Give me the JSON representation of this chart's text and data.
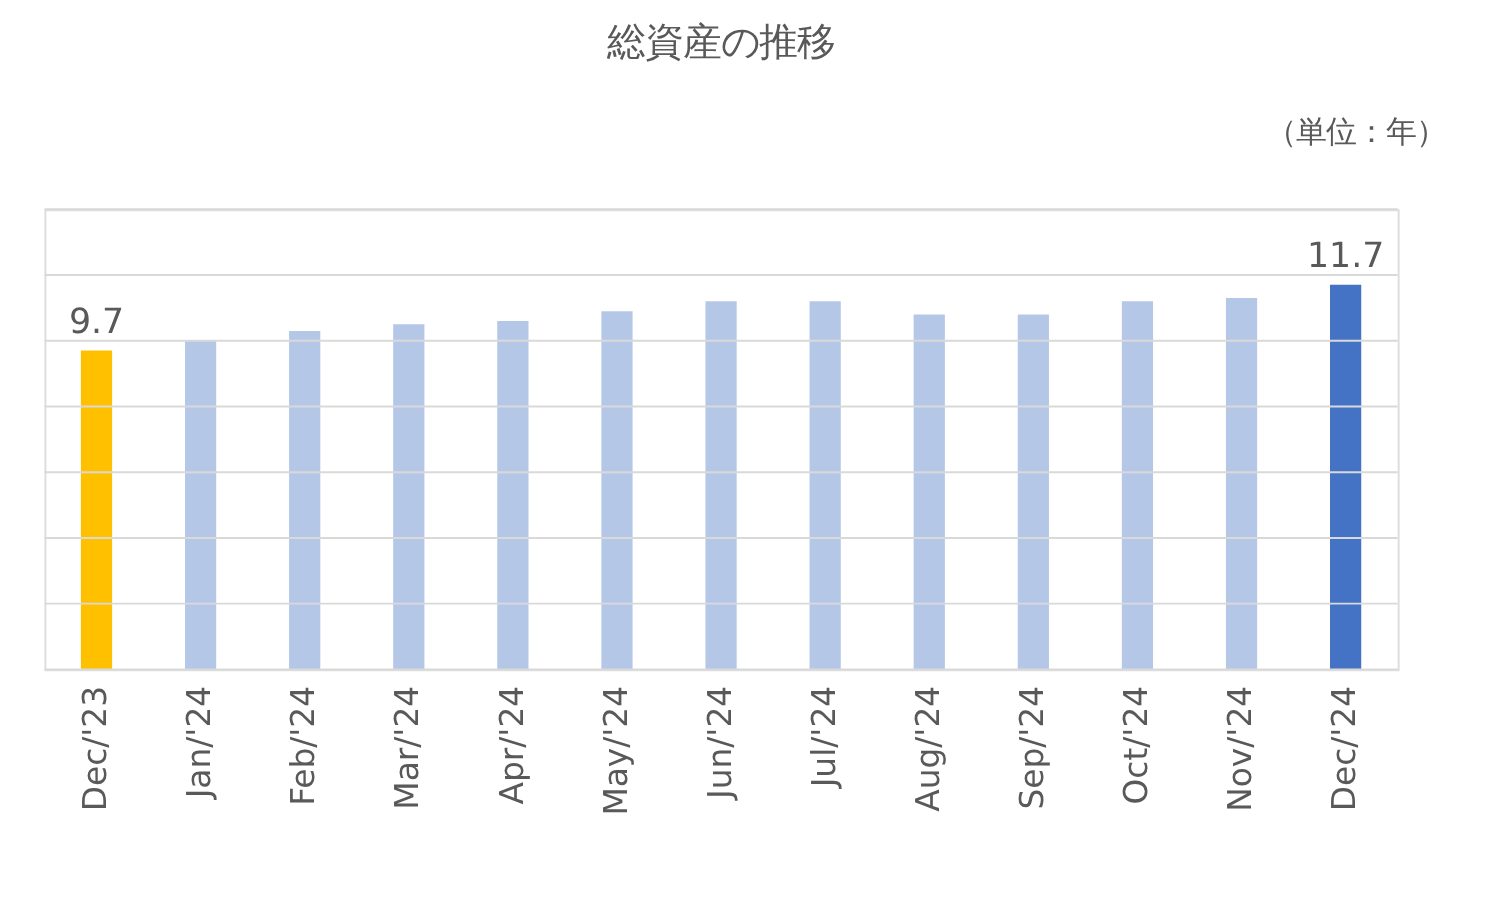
{
  "chart_data": {
    "type": "bar",
    "title": "総資産の推移",
    "annotations": [
      "（単位：年）"
    ],
    "categories": [
      "Dec/'23",
      "Jan/'24",
      "Feb/'24",
      "Mar/'24",
      "Apr/'24",
      "May/'24",
      "Jun/'24",
      "Jul/'24",
      "Aug/'24",
      "Sep/'24",
      "Oct/'24",
      "Nov/'24",
      "Dec/'24"
    ],
    "values": [
      9.7,
      10.0,
      10.3,
      10.5,
      10.6,
      10.9,
      11.2,
      11.2,
      10.8,
      10.8,
      11.2,
      11.3,
      11.7
    ],
    "colors": [
      "#ffc000",
      "#b4c7e7",
      "#b4c7e7",
      "#b4c7e7",
      "#b4c7e7",
      "#b4c7e7",
      "#b4c7e7",
      "#b4c7e7",
      "#b4c7e7",
      "#b4c7e7",
      "#b4c7e7",
      "#b4c7e7",
      "#4472c4"
    ],
    "value_labels": [
      "9.7",
      null,
      null,
      null,
      null,
      null,
      null,
      null,
      null,
      null,
      null,
      null,
      "11.7"
    ],
    "ylim": [
      0,
      14
    ],
    "yticks": [
      {
        "value": 0,
        "label": null
      },
      {
        "value": 2,
        "label": null
      },
      {
        "value": 4,
        "label": null
      },
      {
        "value": 6,
        "label": null
      },
      {
        "value": 8,
        "label": null
      },
      {
        "value": 10,
        "label": null
      },
      {
        "value": 12,
        "label": null
      },
      {
        "value": 14,
        "label": null
      }
    ],
    "grid": "y",
    "tick_labels": "x"
  }
}
